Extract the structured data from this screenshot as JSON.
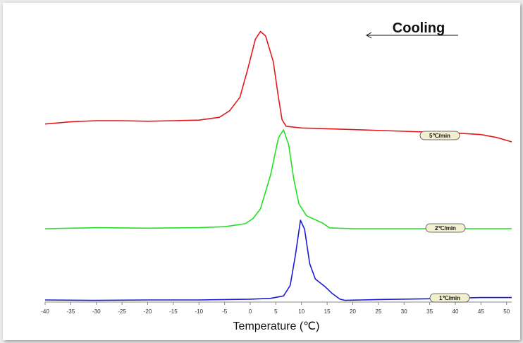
{
  "chart_data": {
    "type": "line",
    "title": "",
    "annotation": "Cooling",
    "xlabel": "Temperature (℃)",
    "ylabel": "",
    "xlim": [
      -40,
      51
    ],
    "x_ticks": [
      "-40",
      "-35",
      "-30",
      "-25",
      "-20",
      "-15",
      "-10",
      "-5",
      "0",
      "5",
      "10",
      "15",
      "20",
      "25",
      "30",
      "35",
      "40",
      "45",
      "50"
    ],
    "grid": false,
    "legend": "inline labels on right",
    "series": [
      {
        "name": "5℃/min",
        "color": "#e31a1c",
        "points": [
          [
            -40,
            16
          ],
          [
            -35,
            18
          ],
          [
            -30,
            19
          ],
          [
            -25,
            19
          ],
          [
            -20,
            18.5
          ],
          [
            -15,
            19
          ],
          [
            -10,
            19.5
          ],
          [
            -6,
            22
          ],
          [
            -4,
            28
          ],
          [
            -2,
            40
          ],
          [
            -0.5,
            65
          ],
          [
            1,
            92
          ],
          [
            2,
            99
          ],
          [
            3,
            95
          ],
          [
            4.5,
            72
          ],
          [
            5.5,
            40
          ],
          [
            6.2,
            20
          ],
          [
            7,
            14
          ],
          [
            10,
            12.5
          ],
          [
            20,
            11
          ],
          [
            30,
            9.5
          ],
          [
            40,
            8
          ],
          [
            45,
            6.5
          ],
          [
            48,
            4
          ],
          [
            51,
            0
          ]
        ]
      },
      {
        "name": "2℃/min",
        "color": "#22e022",
        "points": [
          [
            -40,
            0
          ],
          [
            -30,
            1
          ],
          [
            -20,
            0.5
          ],
          [
            -10,
            1
          ],
          [
            -5,
            2
          ],
          [
            -1,
            5
          ],
          [
            0.5,
            10
          ],
          [
            2,
            20
          ],
          [
            4,
            55
          ],
          [
            5.5,
            92
          ],
          [
            6.5,
            100
          ],
          [
            7.5,
            85
          ],
          [
            8.5,
            50
          ],
          [
            9.5,
            25
          ],
          [
            11,
            13
          ],
          [
            14,
            6
          ],
          [
            15.5,
            0.8
          ],
          [
            20,
            0
          ],
          [
            30,
            0
          ],
          [
            40,
            0
          ],
          [
            51,
            0
          ]
        ]
      },
      {
        "name": "1℃/min",
        "color": "#1a1ad8",
        "points": [
          [
            -40,
            0
          ],
          [
            -30,
            -0.5
          ],
          [
            -20,
            0
          ],
          [
            -10,
            0
          ],
          [
            0,
            1
          ],
          [
            4,
            2
          ],
          [
            6.5,
            5
          ],
          [
            7.8,
            18
          ],
          [
            8.8,
            55
          ],
          [
            9.8,
            99
          ],
          [
            10.6,
            88
          ],
          [
            11.6,
            45
          ],
          [
            12.7,
            26
          ],
          [
            14.5,
            17
          ],
          [
            16,
            8
          ],
          [
            17.5,
            1
          ],
          [
            18.5,
            -0.5
          ],
          [
            25,
            0.5
          ],
          [
            35,
            1.5
          ],
          [
            45,
            3
          ],
          [
            51,
            3
          ]
        ]
      }
    ]
  }
}
